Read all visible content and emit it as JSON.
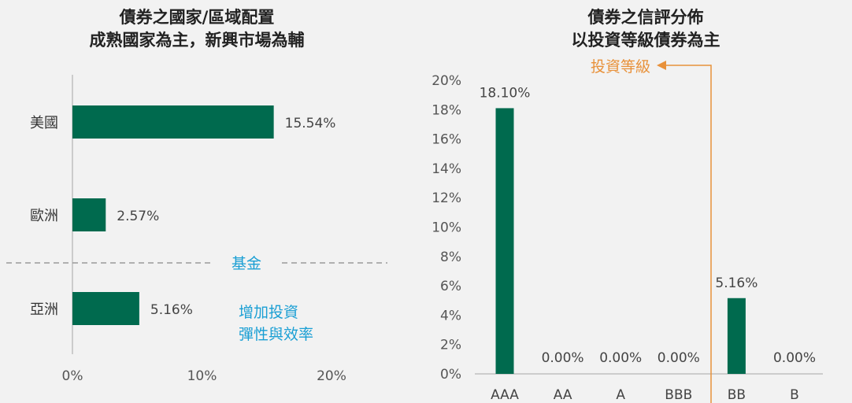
{
  "left_chart": {
    "title_line1": "債券之國家/區域配置",
    "title_line2": "成熟國家為主，新興市場為輔",
    "divider_label": "基金",
    "note_line1": "增加投資",
    "note_line2": "彈性與效率"
  },
  "right_chart": {
    "title_line1": "債券之信評分佈",
    "title_line2": "以投資等級債券為主",
    "annotation": "投資等級"
  },
  "colors": {
    "bar": "#006a4e",
    "accent_blue": "#1a9fd4",
    "accent_orange": "#e8913a",
    "divider": "#999999"
  },
  "chart_data": [
    {
      "type": "bar",
      "orientation": "horizontal",
      "categories": [
        "美國",
        "歐洲",
        "亞洲"
      ],
      "values": [
        15.54,
        2.57,
        5.16
      ],
      "data_labels": [
        "15.54%",
        "2.57%",
        "5.16%"
      ],
      "xlim": [
        0,
        20
      ],
      "x_ticks": [
        "0%",
        "10%",
        "20%"
      ],
      "grid": false
    },
    {
      "type": "bar",
      "orientation": "vertical",
      "categories": [
        "AAA",
        "AA",
        "A",
        "BBB",
        "BB",
        "B"
      ],
      "values": [
        18.1,
        0.0,
        0.0,
        0.0,
        5.16,
        0.0
      ],
      "data_labels": [
        "18.10%",
        "0.00%",
        "0.00%",
        "0.00%",
        "5.16%",
        "0.00%"
      ],
      "ylim": [
        0,
        20
      ],
      "y_ticks": [
        "0%",
        "2%",
        "4%",
        "6%",
        "8%",
        "10%",
        "12%",
        "14%",
        "16%",
        "18%",
        "20%"
      ],
      "grid": false
    }
  ]
}
